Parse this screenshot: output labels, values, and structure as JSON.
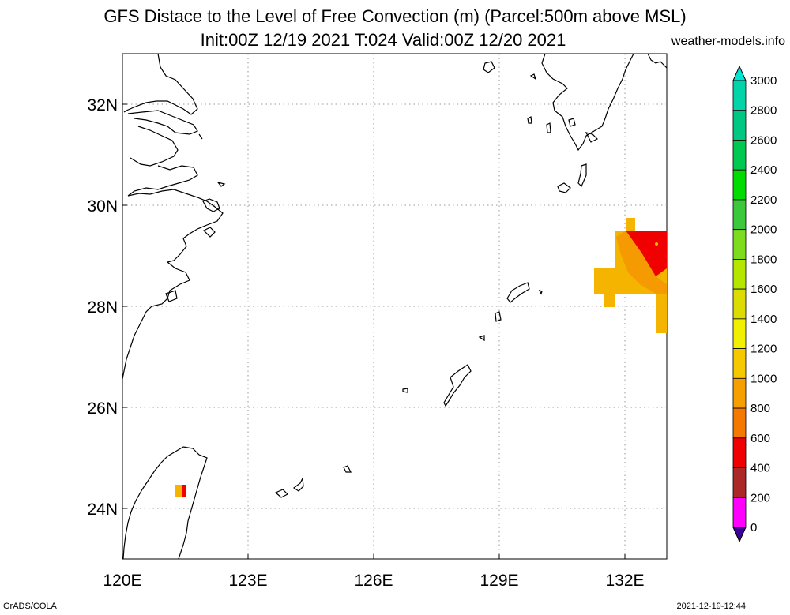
{
  "header": {
    "title_line1": "GFS Distace to the Level of Free Convection (m) (Parcel:500m above MSL)",
    "title_line2": "Init:00Z 12/19 2021 T:024 Valid:00Z 12/20 2021",
    "site": "weather-models.info"
  },
  "footer": {
    "left": "GrADS/COLA",
    "right": "2021-12-19-12:44"
  },
  "map": {
    "lon_range": [
      120,
      133
    ],
    "lat_range": [
      23,
      33
    ],
    "lon_ticks": [
      {
        "value": 120,
        "label": "120E"
      },
      {
        "value": 123,
        "label": "123E"
      },
      {
        "value": 126,
        "label": "126E"
      },
      {
        "value": 129,
        "label": "129E"
      },
      {
        "value": 132,
        "label": "132E"
      }
    ],
    "lat_ticks": [
      {
        "value": 24,
        "label": "24N"
      },
      {
        "value": 26,
        "label": "26N"
      },
      {
        "value": 28,
        "label": "28N"
      },
      {
        "value": 30,
        "label": "30N"
      },
      {
        "value": 32,
        "label": "32N"
      }
    ],
    "grid": true,
    "coastline_color": "#000000"
  },
  "colorbar": {
    "levels": [
      {
        "label": "3000"
      },
      {
        "label": "2800"
      },
      {
        "label": "2600"
      },
      {
        "label": "2400"
      },
      {
        "label": "2200"
      },
      {
        "label": "2000"
      },
      {
        "label": "1800"
      },
      {
        "label": "1600"
      },
      {
        "label": "1400"
      },
      {
        "label": "1200"
      },
      {
        "label": "1000"
      },
      {
        "label": "800"
      },
      {
        "label": "600"
      },
      {
        "label": "400"
      },
      {
        "label": "200"
      },
      {
        "label": "0"
      }
    ],
    "colors_top_to_bottom": [
      "#00e6d2",
      "#00d4a8",
      "#00c882",
      "#00c850",
      "#00dc00",
      "#3cc83c",
      "#7ddc1e",
      "#b4e600",
      "#dcdc00",
      "#f0f000",
      "#f5c800",
      "#f5a000",
      "#f57800",
      "#f00000",
      "#aa2828",
      "#ff00ff",
      "#6400b4",
      "#3c0096"
    ]
  }
}
